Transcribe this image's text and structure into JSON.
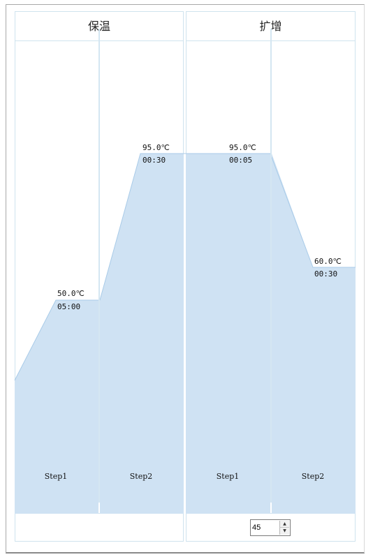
{
  "stages": [
    {
      "title": "保温",
      "steps": [
        {
          "label": "Step1",
          "temperature": "50.0℃",
          "time": "05:00"
        },
        {
          "label": "Step2",
          "temperature": "95.0℃",
          "time": "00:30"
        }
      ]
    },
    {
      "title": "扩增",
      "steps": [
        {
          "label": "Step1",
          "temperature": "95.0℃",
          "time": "00:05"
        },
        {
          "label": "Step2",
          "temperature": "60.0℃",
          "time": "00:30"
        }
      ],
      "cycles": "45"
    }
  ],
  "colors": {
    "fill": "#cfe2f3",
    "line": "#a9cbe8",
    "border": "#cfe3ee"
  }
}
